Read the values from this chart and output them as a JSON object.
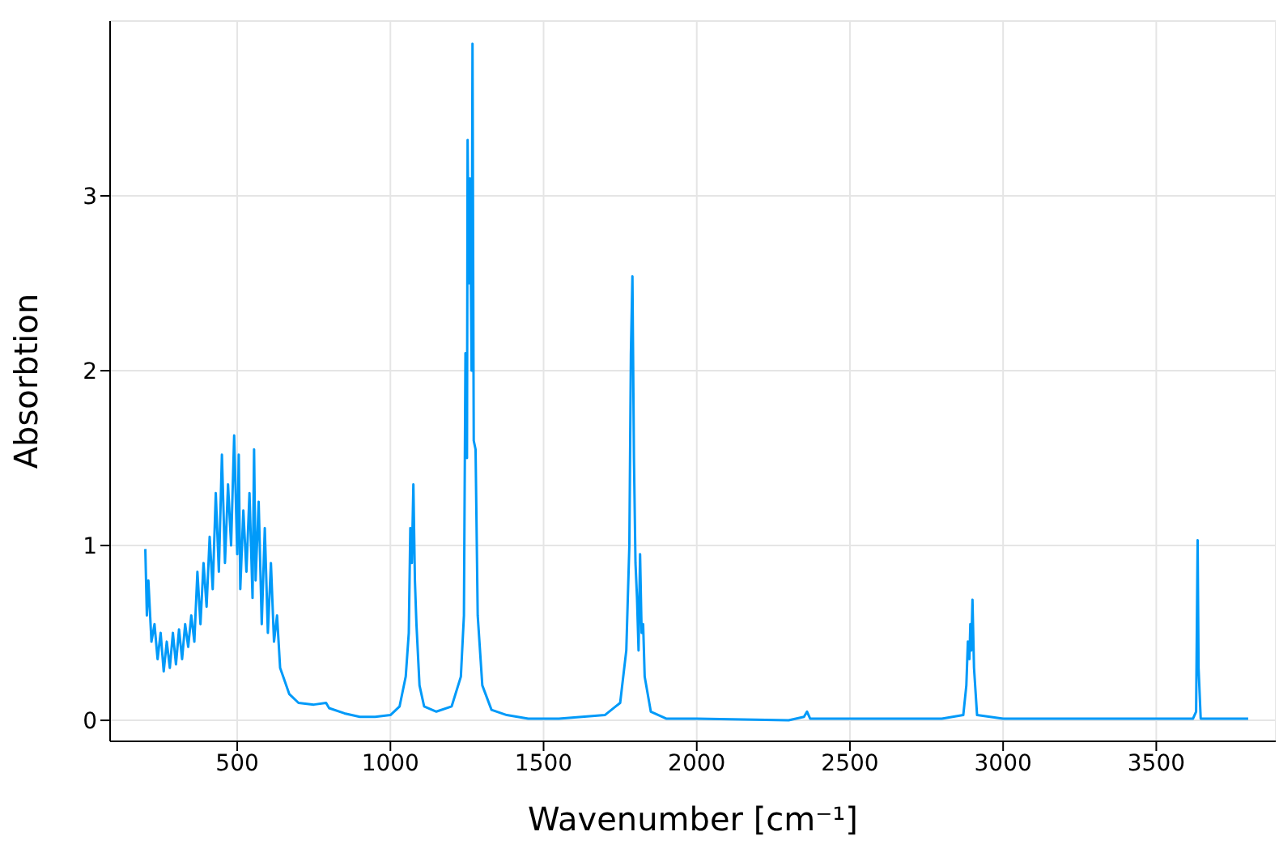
{
  "chart_data": {
    "type": "line",
    "xlabel": "Wavenumber [cm⁻¹]",
    "ylabel": "Absorbtion",
    "xlim": [
      85,
      3890
    ],
    "ylim": [
      -0.12,
      4.0
    ],
    "xticks": [
      500,
      1000,
      1500,
      2000,
      2500,
      3000,
      3500
    ],
    "yticks": [
      0,
      1,
      2,
      3
    ],
    "grid": true,
    "legend": false,
    "marker": "none",
    "line_style": "solid",
    "x": [
      200,
      205,
      210,
      220,
      230,
      240,
      250,
      260,
      270,
      280,
      290,
      300,
      310,
      320,
      330,
      340,
      350,
      360,
      370,
      380,
      390,
      400,
      410,
      420,
      430,
      440,
      450,
      460,
      470,
      480,
      490,
      500,
      505,
      510,
      520,
      530,
      540,
      550,
      555,
      560,
      570,
      580,
      590,
      600,
      610,
      620,
      630,
      640,
      650,
      670,
      700,
      750,
      790,
      800,
      850,
      900,
      950,
      1000,
      1030,
      1050,
      1060,
      1065,
      1070,
      1075,
      1080,
      1085,
      1095,
      1110,
      1150,
      1200,
      1230,
      1240,
      1245,
      1250,
      1252,
      1256,
      1260,
      1265,
      1268,
      1272,
      1278,
      1285,
      1300,
      1330,
      1380,
      1450,
      1550,
      1700,
      1750,
      1770,
      1780,
      1785,
      1790,
      1795,
      1800,
      1805,
      1810,
      1815,
      1820,
      1825,
      1830,
      1850,
      1900,
      2000,
      2300,
      2350,
      2360,
      2370,
      2800,
      2870,
      2880,
      2885,
      2890,
      2893,
      2896,
      2900,
      2905,
      2915,
      3000,
      3620,
      3630,
      3635,
      3638,
      3645,
      3800
    ],
    "series": [
      {
        "color": "#009af9",
        "values": [
          0.98,
          0.6,
          0.8,
          0.45,
          0.55,
          0.35,
          0.5,
          0.28,
          0.45,
          0.3,
          0.5,
          0.32,
          0.52,
          0.35,
          0.55,
          0.42,
          0.6,
          0.45,
          0.85,
          0.55,
          0.9,
          0.65,
          1.05,
          0.75,
          1.3,
          0.85,
          1.52,
          0.9,
          1.35,
          1.0,
          1.63,
          0.95,
          1.52,
          0.75,
          1.2,
          0.85,
          1.3,
          0.7,
          1.55,
          0.8,
          1.25,
          0.55,
          1.1,
          0.5,
          0.9,
          0.45,
          0.6,
          0.3,
          0.25,
          0.15,
          0.1,
          0.09,
          0.1,
          0.07,
          0.04,
          0.02,
          0.02,
          0.03,
          0.08,
          0.25,
          0.5,
          1.1,
          0.9,
          1.35,
          0.8,
          0.55,
          0.2,
          0.08,
          0.05,
          0.08,
          0.25,
          0.6,
          2.1,
          1.5,
          3.32,
          2.5,
          3.1,
          2.0,
          3.87,
          1.6,
          1.55,
          0.6,
          0.2,
          0.06,
          0.03,
          0.01,
          0.01,
          0.03,
          0.1,
          0.4,
          1.0,
          2.1,
          2.54,
          1.5,
          0.9,
          0.7,
          0.4,
          0.95,
          0.5,
          0.55,
          0.25,
          0.05,
          0.01,
          0.01,
          0,
          0.02,
          0.05,
          0.01,
          0.01,
          0.03,
          0.2,
          0.45,
          0.35,
          0.55,
          0.4,
          0.69,
          0.3,
          0.03,
          0.01,
          0.01,
          0.05,
          1.03,
          0.3,
          0.01,
          0.01
        ]
      }
    ]
  }
}
